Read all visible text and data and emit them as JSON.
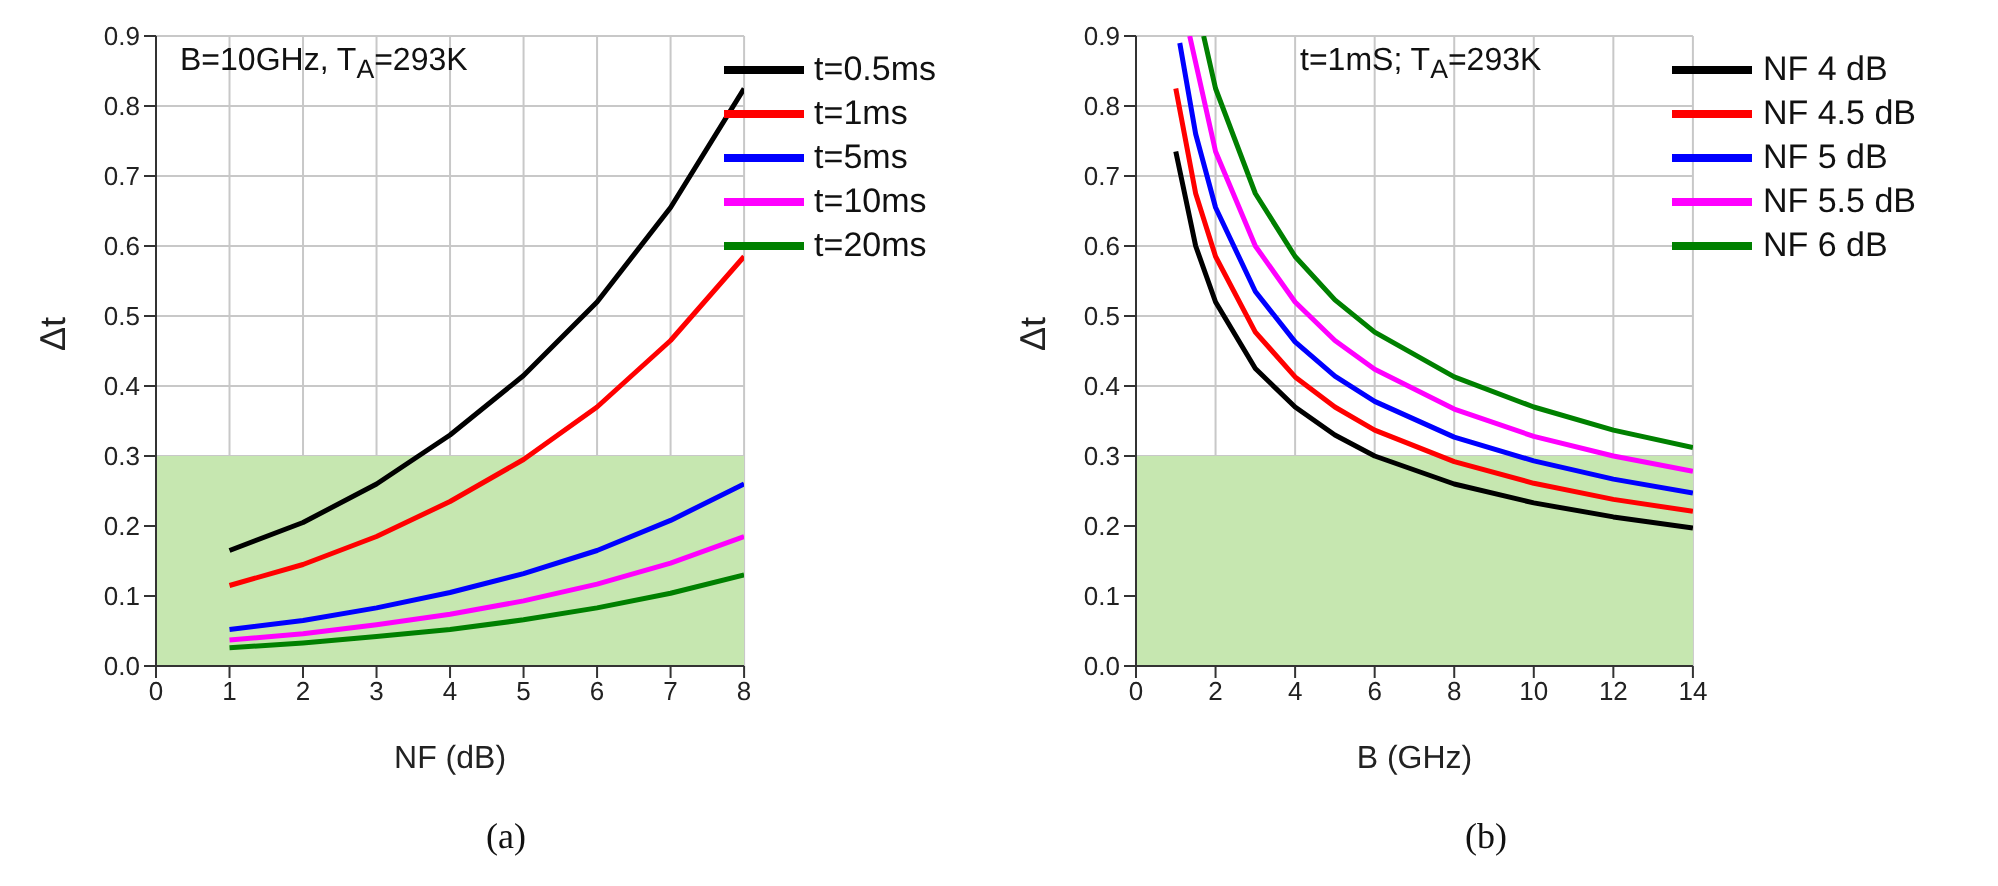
{
  "chart_data": [
    {
      "type": "line",
      "xlabel": "NF (dB)",
      "ylabel": "Δt",
      "annotations": [
        "B=10GHz, T$_{A}$=293K",
        "(a)"
      ],
      "xlim": [
        0,
        8
      ],
      "xticks": [
        0,
        1,
        2,
        3,
        4,
        5,
        6,
        7,
        8
      ],
      "ylim": [
        0,
        0.9
      ],
      "yticks": [
        {
          "value": 0,
          "label": "0.0"
        },
        0.1,
        0.2,
        0.3,
        0.4,
        0.5,
        0.6,
        0.7,
        0.8,
        0.9
      ],
      "grid": true,
      "legend": "top right",
      "bands": [
        {
          "axis": "y",
          "from": 0,
          "to": 0.3,
          "color": "#c6e7b0"
        }
      ],
      "x": [
        1,
        2,
        3,
        4,
        5,
        6,
        7,
        8
      ],
      "series": [
        {
          "name": "t=0.5ms",
          "color": "#000000",
          "values": [
            0.165,
            0.205,
            0.26,
            0.33,
            0.415,
            0.52,
            0.655,
            0.825
          ]
        },
        {
          "name": "t=1ms",
          "color": "#ff0000",
          "values": [
            0.115,
            0.145,
            0.185,
            0.235,
            0.295,
            0.37,
            0.465,
            0.585
          ]
        },
        {
          "name": "t=5ms",
          "color": "#0000ff",
          "values": [
            0.052,
            0.065,
            0.083,
            0.105,
            0.132,
            0.165,
            0.208,
            0.26
          ]
        },
        {
          "name": "t=10ms",
          "color": "#ff00ff",
          "values": [
            0.037,
            0.046,
            0.059,
            0.074,
            0.093,
            0.117,
            0.147,
            0.185
          ]
        },
        {
          "name": "t=20ms",
          "color": "#008000",
          "values": [
            0.026,
            0.033,
            0.042,
            0.052,
            0.066,
            0.083,
            0.104,
            0.13
          ]
        }
      ]
    },
    {
      "type": "line",
      "xlabel": "B (GHz)",
      "ylabel": "Δt",
      "annotations": [
        "t=1mS; T$_{A}$=293K",
        "(b)"
      ],
      "xlim": [
        0,
        14
      ],
      "xticks": [
        0,
        2,
        4,
        6,
        8,
        10,
        12,
        14
      ],
      "ylim": [
        0,
        0.9
      ],
      "yticks": [
        {
          "value": 0,
          "label": "0.0"
        },
        0.1,
        0.2,
        0.3,
        0.4,
        0.5,
        0.6,
        0.7,
        0.8,
        0.9
      ],
      "grid": true,
      "legend": "top right",
      "bands": [
        {
          "axis": "y",
          "from": 0,
          "to": 0.3,
          "color": "#c6e7b0"
        }
      ],
      "series": [
        {
          "name": "NF 4 dB",
          "color": "#000000",
          "x": [
            1,
            1.5,
            2,
            3,
            4,
            5,
            6,
            8,
            10,
            12,
            14
          ],
          "values": [
            0.735,
            0.6,
            0.52,
            0.425,
            0.37,
            0.33,
            0.3,
            0.26,
            0.233,
            0.213,
            0.197
          ]
        },
        {
          "name": "NF 4.5 dB",
          "color": "#ff0000",
          "x": [
            1,
            1.5,
            2,
            3,
            4,
            5,
            6,
            8,
            10,
            12,
            14
          ],
          "values": [
            0.825,
            0.675,
            0.585,
            0.477,
            0.413,
            0.37,
            0.337,
            0.292,
            0.261,
            0.238,
            0.221
          ]
        },
        {
          "name": "NF 5 dB",
          "color": "#0000ff",
          "x": [
            1.1,
            1.5,
            2,
            3,
            4,
            5,
            6,
            8,
            10,
            12,
            14
          ],
          "values": [
            0.89,
            0.76,
            0.655,
            0.535,
            0.463,
            0.414,
            0.378,
            0.327,
            0.293,
            0.267,
            0.247
          ]
        },
        {
          "name": "NF 5.5 dB",
          "color": "#ff00ff",
          "x": [
            1.35,
            2,
            3,
            4,
            5,
            6,
            8,
            10,
            12,
            14
          ],
          "values": [
            0.9,
            0.735,
            0.6,
            0.52,
            0.465,
            0.424,
            0.367,
            0.328,
            0.3,
            0.278
          ]
        },
        {
          "name": "NF 6 dB",
          "color": "#008000",
          "x": [
            1.7,
            2,
            3,
            4,
            5,
            6,
            8,
            10,
            12,
            14
          ],
          "values": [
            0.9,
            0.825,
            0.675,
            0.585,
            0.523,
            0.477,
            0.413,
            0.37,
            0.337,
            0.312
          ]
        }
      ]
    }
  ]
}
